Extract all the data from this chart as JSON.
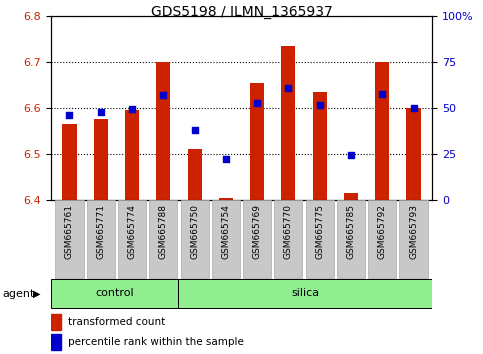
{
  "title": "GDS5198 / ILMN_1365937",
  "samples": [
    "GSM665761",
    "GSM665771",
    "GSM665774",
    "GSM665788",
    "GSM665750",
    "GSM665754",
    "GSM665769",
    "GSM665770",
    "GSM665775",
    "GSM665785",
    "GSM665792",
    "GSM665793"
  ],
  "red_values": [
    6.565,
    6.575,
    6.595,
    6.7,
    6.51,
    6.405,
    6.655,
    6.735,
    6.635,
    6.415,
    6.7,
    6.6
  ],
  "blue_values": [
    6.585,
    6.592,
    6.598,
    6.628,
    6.552,
    6.49,
    6.61,
    6.643,
    6.607,
    6.497,
    6.63,
    6.6
  ],
  "control_count": 4,
  "silica_count": 8,
  "ylim_left": [
    6.4,
    6.8
  ],
  "ylim_right": [
    0,
    100
  ],
  "yticks_left": [
    6.4,
    6.5,
    6.6,
    6.7,
    6.8
  ],
  "yticks_right": [
    0,
    25,
    50,
    75,
    100
  ],
  "ytick_labels_right": [
    "0",
    "25",
    "50",
    "75",
    "100%"
  ],
  "bar_color": "#cc2200",
  "dot_color": "#0000cc",
  "bar_base": 6.4,
  "green_bg": "#90ee90",
  "tick_bg": "#c8c8c8",
  "tick_edge": "#aaaaaa",
  "legend_red_label": "transformed count",
  "legend_blue_label": "percentile rank within the sample",
  "agent_label": "agent",
  "control_label": "control",
  "silica_label": "silica"
}
